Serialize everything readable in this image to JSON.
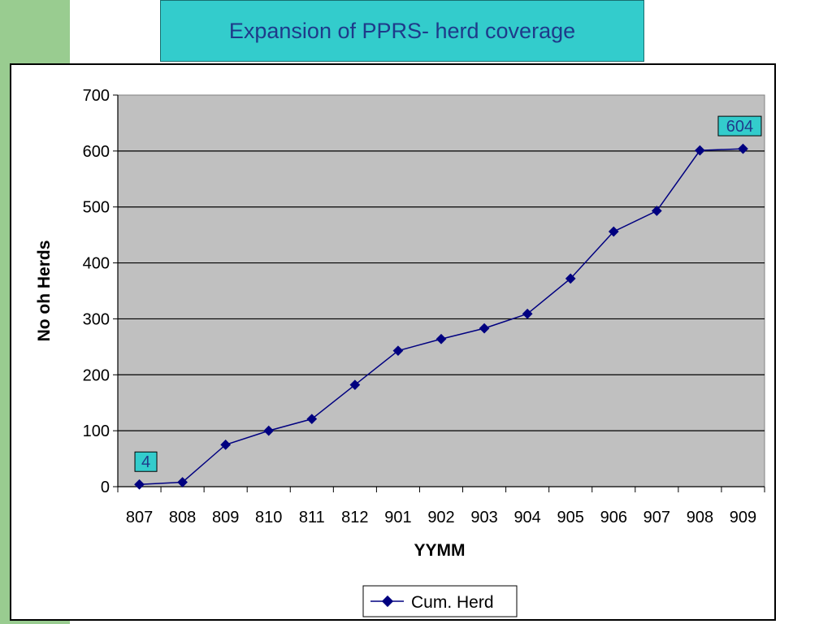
{
  "slide": {
    "title": "Expansion of PPRS- herd coverage"
  },
  "colors": {
    "accent": "#33cccc",
    "title_text": "#1f3a8a",
    "side_strip": "#99cc90",
    "plot_bg": "#c0c0c0",
    "series_line": "#000080"
  },
  "chart_data": {
    "type": "line",
    "title": "",
    "xlabel": "YYMM",
    "ylabel": "No oh Herds",
    "categories": [
      "807",
      "808",
      "809",
      "810",
      "811",
      "812",
      "901",
      "902",
      "903",
      "904",
      "905",
      "906",
      "907",
      "908",
      "909"
    ],
    "series": [
      {
        "name": "Cum. Herd",
        "values": [
          4,
          8,
          75,
          100,
          121,
          182,
          243,
          264,
          283,
          309,
          372,
          456,
          493,
          601,
          604
        ]
      }
    ],
    "ylim": [
      0,
      700
    ],
    "yticks": [
      0,
      100,
      200,
      300,
      400,
      500,
      600,
      700
    ],
    "grid": true,
    "legend": "bottom",
    "data_labels": [
      {
        "index": 0,
        "text": "4"
      },
      {
        "index": 14,
        "text": "604"
      }
    ]
  }
}
